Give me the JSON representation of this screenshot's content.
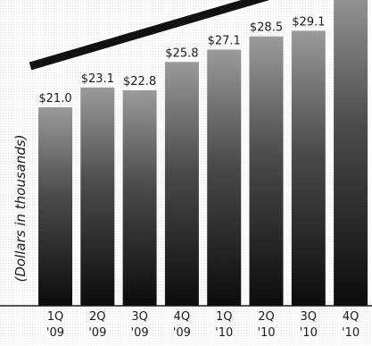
{
  "chart_data": {
    "type": "bar",
    "title": "",
    "xlabel": "",
    "ylabel": "(Dollars in thousands)",
    "categories": [
      [
        "1Q",
        "'09"
      ],
      [
        "2Q",
        "'09"
      ],
      [
        "3Q",
        "'09"
      ],
      [
        "4Q",
        "'09"
      ],
      [
        "1Q",
        "'10"
      ],
      [
        "2Q",
        "'10"
      ],
      [
        "3Q",
        "'10"
      ],
      [
        "4Q",
        "'10"
      ]
    ],
    "values": [
      21.0,
      23.1,
      22.8,
      25.8,
      27.1,
      28.5,
      29.1,
      34.0
    ],
    "labels": [
      "$21.0",
      "$23.1",
      "$22.8",
      "$25.8",
      "$27.1",
      "$28.5",
      "$29.1",
      ""
    ],
    "ylim": [
      0,
      34
    ],
    "grid": false,
    "legend": "none",
    "colors": {
      "bar_top": "#9a9a9a",
      "bar_bottom": "#0c0c0c",
      "trend_arrow": "#111111",
      "background_dots": "#d0d0d0",
      "text": "#1a1a1a"
    }
  }
}
